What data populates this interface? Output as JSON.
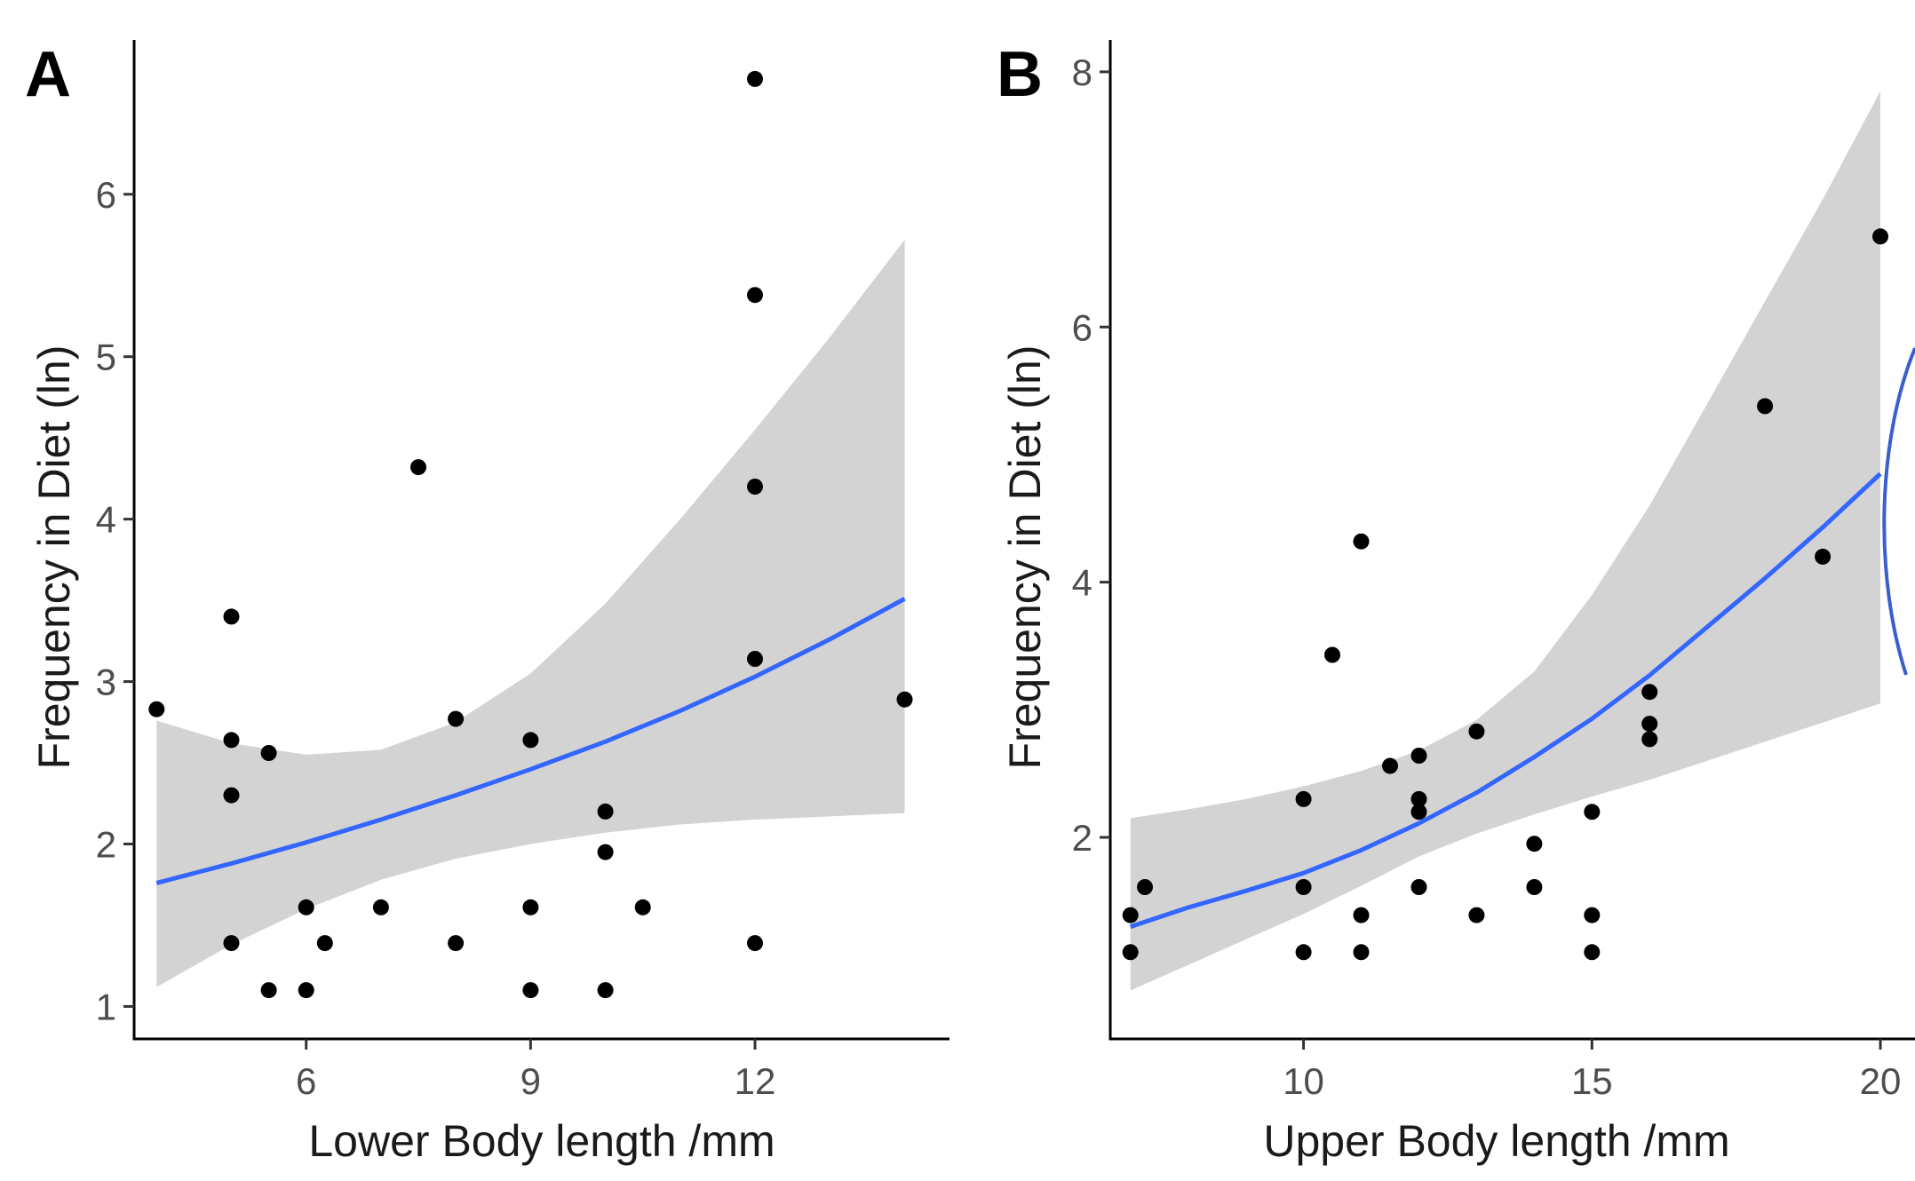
{
  "chart_data": [
    {
      "type": "scatter",
      "panel_label": "A",
      "xlabel": "Lower Body length /mm",
      "ylabel": "Frequency in Diet (ln)",
      "xlim": [
        3.7,
        14.6
      ],
      "ylim": [
        0.8,
        6.95
      ],
      "xticks": [
        6,
        9,
        12
      ],
      "yticks": [
        1,
        2,
        3,
        4,
        5,
        6
      ],
      "grid": false,
      "points": [
        [
          4.0,
          2.83
        ],
        [
          5.0,
          3.4
        ],
        [
          5.0,
          2.64
        ],
        [
          5.0,
          2.3
        ],
        [
          5.0,
          1.39
        ],
        [
          5.5,
          2.56
        ],
        [
          5.5,
          1.1
        ],
        [
          6.0,
          1.61
        ],
        [
          6.0,
          1.1
        ],
        [
          6.25,
          1.39
        ],
        [
          7.0,
          1.61
        ],
        [
          7.5,
          4.32
        ],
        [
          8.0,
          2.77
        ],
        [
          8.0,
          1.39
        ],
        [
          9.0,
          2.64
        ],
        [
          9.0,
          1.61
        ],
        [
          9.0,
          1.1
        ],
        [
          10.0,
          2.2
        ],
        [
          10.0,
          1.95
        ],
        [
          10.0,
          1.1
        ],
        [
          10.5,
          1.61
        ],
        [
          12.0,
          6.71
        ],
        [
          12.0,
          5.38
        ],
        [
          12.0,
          4.2
        ],
        [
          12.0,
          3.14
        ],
        [
          12.0,
          1.39
        ],
        [
          14.0,
          2.89
        ]
      ],
      "fit": {
        "x": [
          4.0,
          5.0,
          6.0,
          7.0,
          8.0,
          9.0,
          10.0,
          11.0,
          12.0,
          13.0,
          14.0
        ],
        "y": [
          1.76,
          1.88,
          2.01,
          2.15,
          2.3,
          2.46,
          2.63,
          2.82,
          3.03,
          3.26,
          3.51
        ],
        "lower": [
          1.12,
          1.38,
          1.6,
          1.78,
          1.91,
          2.0,
          2.07,
          2.12,
          2.15,
          2.17,
          2.19
        ],
        "upper": [
          2.76,
          2.62,
          2.55,
          2.58,
          2.75,
          3.05,
          3.48,
          4.0,
          4.55,
          5.12,
          5.72
        ]
      }
    },
    {
      "type": "scatter",
      "panel_label": "B",
      "xlabel": "Upper Body length /mm",
      "ylabel": "Frequency in Diet (ln)",
      "xlim": [
        6.65,
        20.6
      ],
      "ylim": [
        0.42,
        8.25
      ],
      "xticks": [
        10,
        15,
        20
      ],
      "yticks": [
        2,
        4,
        6,
        8
      ],
      "grid": false,
      "points": [
        [
          7.0,
          1.39
        ],
        [
          7.0,
          1.1
        ],
        [
          7.25,
          1.61
        ],
        [
          10.0,
          2.3
        ],
        [
          10.0,
          1.61
        ],
        [
          10.0,
          1.1
        ],
        [
          10.5,
          3.43
        ],
        [
          11.0,
          4.32
        ],
        [
          11.0,
          1.39
        ],
        [
          11.0,
          1.1
        ],
        [
          11.5,
          2.56
        ],
        [
          12.0,
          2.64
        ],
        [
          12.0,
          2.3
        ],
        [
          12.0,
          2.2
        ],
        [
          12.0,
          1.61
        ],
        [
          13.0,
          2.83
        ],
        [
          13.0,
          1.39
        ],
        [
          14.0,
          1.95
        ],
        [
          14.0,
          1.61
        ],
        [
          15.0,
          2.2
        ],
        [
          15.0,
          1.39
        ],
        [
          15.0,
          1.1
        ],
        [
          16.0,
          3.14
        ],
        [
          16.0,
          2.89
        ],
        [
          16.0,
          2.77
        ],
        [
          18.0,
          5.38
        ],
        [
          19.0,
          4.2
        ],
        [
          20.0,
          6.71
        ]
      ],
      "fit": {
        "x": [
          7.0,
          8.0,
          9.0,
          10.0,
          11.0,
          12.0,
          13.0,
          14.0,
          15.0,
          16.0,
          17.0,
          18.0,
          19.0,
          20.0
        ],
        "y": [
          1.3,
          1.45,
          1.58,
          1.72,
          1.9,
          2.11,
          2.35,
          2.63,
          2.93,
          3.27,
          3.65,
          4.03,
          4.43,
          4.85
        ],
        "lower": [
          0.8,
          1.0,
          1.2,
          1.4,
          1.62,
          1.85,
          2.03,
          2.18,
          2.32,
          2.45,
          2.6,
          2.75,
          2.9,
          3.05
        ],
        "upper": [
          2.15,
          2.22,
          2.3,
          2.4,
          2.52,
          2.68,
          2.92,
          3.3,
          3.9,
          4.6,
          5.4,
          6.2,
          7.0,
          7.85
        ]
      }
    }
  ]
}
